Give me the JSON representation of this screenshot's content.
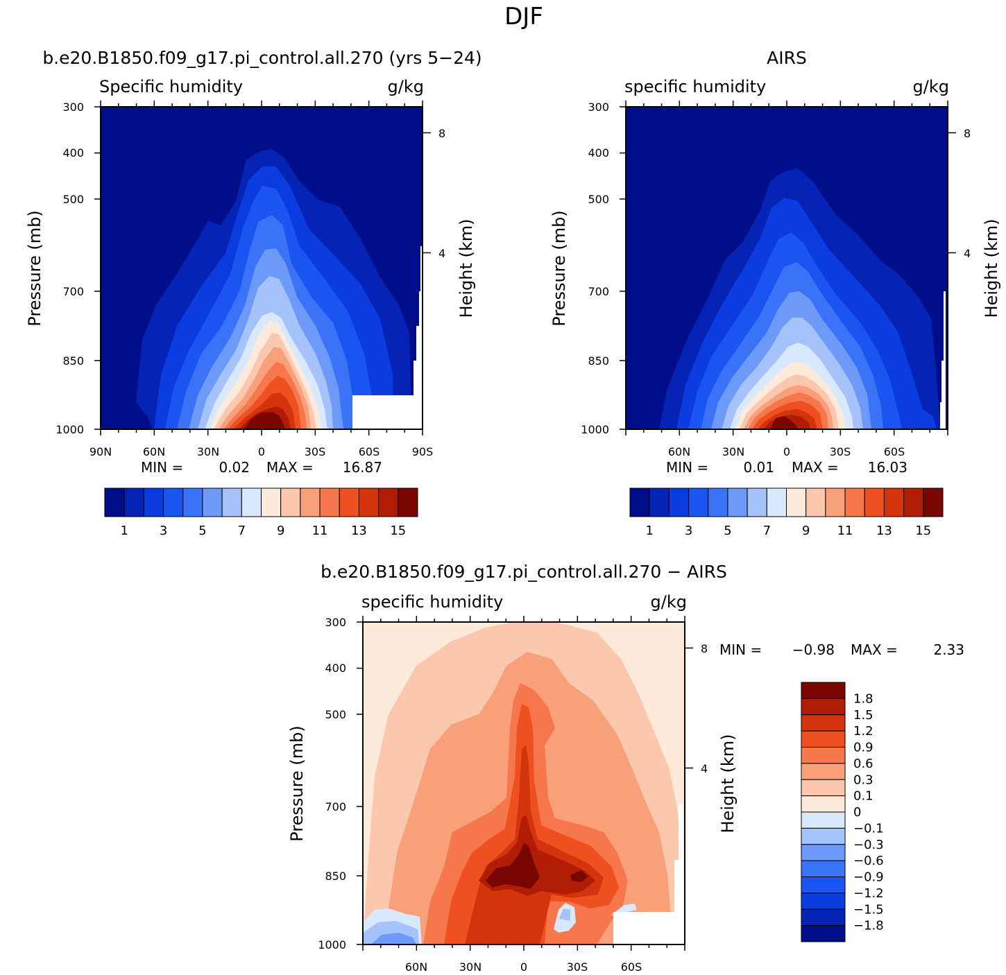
{
  "figure": {
    "title": "DJF"
  },
  "chart_data": [
    {
      "type": "heatmap",
      "title": "b.e20.B1850.f09_g17.pi_control.all.270 (yrs 5−24)",
      "variable": "Specific humidity",
      "units": "g/kg",
      "xlabel": "",
      "ylabel": "Pressure (mb)",
      "y2label": "Height (km)",
      "x_ticks": [
        "90N",
        "60N",
        "30N",
        "0",
        "30S",
        "60S",
        "90S"
      ],
      "y_ticks": [
        "300",
        "400",
        "500",
        "700",
        "850",
        "1000"
      ],
      "y2_ticks": [
        "8",
        "4"
      ],
      "stats": {
        "min_label": "MIN =",
        "min": "0.02",
        "max_label": "MAX =",
        "max": "16.87"
      },
      "colorbar_labels": [
        "1",
        "3",
        "5",
        "7",
        "9",
        "11",
        "13",
        "15"
      ],
      "palette": [
        "#000e8a",
        "#0523b4",
        "#0b3ce0",
        "#1a55f2",
        "#3a73f7",
        "#6d99f8",
        "#a6c2fb",
        "#d9e9fd",
        "#fdeadb",
        "#fbc7ad",
        "#f8a079",
        "#f6774b",
        "#ee5020",
        "#d3340c",
        "#b01c04",
        "#7a0602"
      ],
      "peak_value_gkg": 16.87,
      "peak_latitude": 0,
      "surface_peak_pressure_mb": 1000,
      "grid": false,
      "legend": "bottom"
    },
    {
      "type": "heatmap",
      "title": "AIRS",
      "variable": "specific humidity",
      "units": "g/kg",
      "xlabel": "",
      "ylabel": "Pressure (mb)",
      "y2label": "Height (km)",
      "x_ticks": [
        "60N",
        "30N",
        "0",
        "30S",
        "60S"
      ],
      "y_ticks": [
        "300",
        "400",
        "500",
        "700",
        "850",
        "1000"
      ],
      "y2_ticks": [
        "8",
        "4"
      ],
      "stats": {
        "min_label": "MIN =",
        "min": "0.01",
        "max_label": "MAX =",
        "max": "16.03"
      },
      "colorbar_labels": [
        "1",
        "3",
        "5",
        "7",
        "9",
        "11",
        "13",
        "15"
      ],
      "palette": [
        "#000e8a",
        "#0523b4",
        "#0b3ce0",
        "#1a55f2",
        "#3a73f7",
        "#6d99f8",
        "#a6c2fb",
        "#d9e9fd",
        "#fdeadb",
        "#fbc7ad",
        "#f8a079",
        "#f6774b",
        "#ee5020",
        "#d3340c",
        "#b01c04",
        "#7a0602"
      ],
      "peak_value_gkg": 16.03,
      "peak_latitude": 0,
      "surface_peak_pressure_mb": 1000,
      "grid": false,
      "legend": "bottom"
    },
    {
      "type": "heatmap",
      "title": "b.e20.B1850.f09_g17.pi_control.all.270 − AIRS",
      "variable": "specific humidity",
      "units": "g/kg",
      "xlabel": "",
      "ylabel": "Pressure (mb)",
      "y2label": "Height (km)",
      "x_ticks": [
        "60N",
        "30N",
        "0",
        "30S",
        "60S"
      ],
      "y_ticks": [
        "300",
        "400",
        "500",
        "700",
        "850",
        "1000"
      ],
      "y2_ticks": [
        "8",
        "4"
      ],
      "stats": {
        "min_label": "MIN =",
        "min": "−0.98",
        "max_label": "MAX =",
        "max": "2.33"
      },
      "colorbar_labels": [
        "1.8",
        "1.5",
        "1.2",
        "0.9",
        "0.6",
        "0.3",
        "0.1",
        "0",
        "−0.1",
        "−0.3",
        "−0.6",
        "−0.9",
        "−1.2",
        "−1.5",
        "−1.8"
      ],
      "palette": [
        "#7a0602",
        "#b01c04",
        "#d3340c",
        "#ee5020",
        "#f6774b",
        "#f8a079",
        "#fbc7ad",
        "#fdeadb",
        "#d9e9fd",
        "#a6c2fb",
        "#6d99f8",
        "#3a73f7",
        "#1a55f2",
        "#0b3ce0",
        "#0523b4",
        "#000e8a"
      ],
      "max_value_gkg": 2.33,
      "max_at_latitude": 0,
      "max_at_pressure_mb": 850,
      "min_value_gkg": -0.98,
      "grid": false,
      "legend": "right"
    }
  ]
}
